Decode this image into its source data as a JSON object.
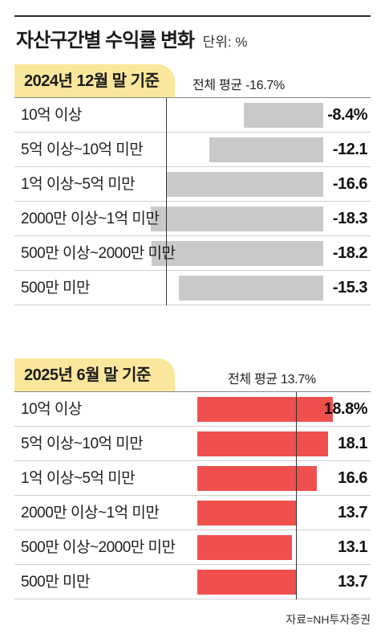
{
  "header": {
    "title": "자산구간별 수익률 변화",
    "unit": "단위: %"
  },
  "source": "자료=NH투자증권",
  "chart_data": [
    {
      "type": "bar",
      "orientation": "horizontal",
      "period_label": "2024년 12월 말 기준",
      "average_label": "전체 평균 -16.7%",
      "average": -16.7,
      "categories": [
        "10억 이상",
        "5억 이상~10억 미만",
        "1억 이상~5억 미만",
        "2000만 이상~1억 미만",
        "500만 이상~2000만 미만",
        "500만 미만"
      ],
      "values": [
        -8.4,
        -12.1,
        -16.6,
        -18.3,
        -18.2,
        -15.3
      ],
      "value_labels": [
        "-8.4%",
        "-12.1",
        "-16.6",
        "-18.3",
        "-18.2",
        "-15.3"
      ],
      "bar_color": "#c9c9c9"
    },
    {
      "type": "bar",
      "orientation": "horizontal",
      "period_label": "2025년 6월 말 기준",
      "average_label": "전체 평균 13.7%",
      "average": 13.7,
      "categories": [
        "10억 이상",
        "5억 이상~10억 미만",
        "1억 이상~5억 미만",
        "2000만 이상~1억 미만",
        "500만 이상~2000만 미만",
        "500만 미만"
      ],
      "values": [
        18.8,
        18.1,
        16.6,
        13.7,
        13.1,
        13.7
      ],
      "value_labels": [
        "18.8%",
        "18.1",
        "16.6",
        "13.7",
        "13.1",
        "13.7"
      ],
      "bar_color": "#f0504d"
    }
  ]
}
